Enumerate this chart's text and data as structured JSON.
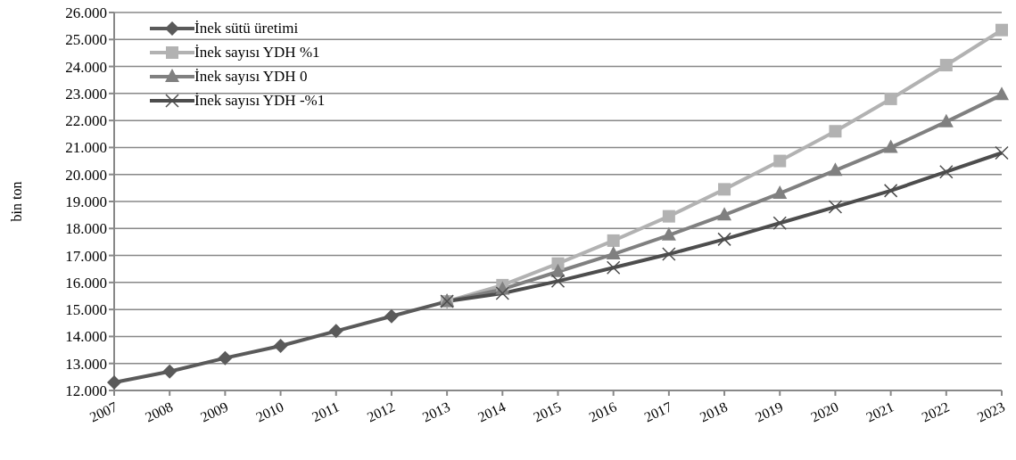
{
  "chart_data": {
    "type": "line",
    "ylabel": "bin ton",
    "categories": [
      "2007",
      "2008",
      "2009",
      "2010",
      "2011",
      "2012",
      "2013",
      "2014",
      "2015",
      "2016",
      "2017",
      "2018",
      "2019",
      "2020",
      "2021",
      "2022",
      "2023"
    ],
    "series": [
      {
        "name": "İnek sütü üretimi",
        "color": "#5a5a5a",
        "marker": "diamond",
        "values": [
          12300,
          12700,
          13200,
          13650,
          14200,
          14750,
          15300,
          null,
          null,
          null,
          null,
          null,
          null,
          null,
          null,
          null,
          null
        ]
      },
      {
        "name": "İnek sayısı YDH %1",
        "color": "#b2b2b2",
        "marker": "square",
        "values": [
          null,
          null,
          null,
          null,
          null,
          null,
          15300,
          15900,
          16700,
          17550,
          18450,
          19450,
          20500,
          21600,
          22800,
          24050,
          25350
        ]
      },
      {
        "name": "İnek sayısı YDH 0",
        "color": "#808080",
        "marker": "triangle",
        "values": [
          null,
          null,
          null,
          null,
          null,
          null,
          15300,
          15750,
          16400,
          17050,
          17750,
          18500,
          19300,
          20150,
          21000,
          21950,
          22950
        ]
      },
      {
        "name": "İnek sayısı YDH -%1",
        "color": "#4d4d4d",
        "marker": "cross",
        "values": [
          null,
          null,
          null,
          null,
          null,
          null,
          15300,
          15600,
          16050,
          16550,
          17050,
          17600,
          18200,
          18800,
          19400,
          20100,
          20800
        ]
      }
    ],
    "ylim": [
      12000,
      26000
    ],
    "yticks": [
      {
        "value": 12000,
        "label": "12.000"
      },
      {
        "value": 13000,
        "label": "13.000"
      },
      {
        "value": 14000,
        "label": "14.000"
      },
      {
        "value": 15000,
        "label": "15.000"
      },
      {
        "value": 16000,
        "label": "16.000"
      },
      {
        "value": 17000,
        "label": "17.000"
      },
      {
        "value": 18000,
        "label": "18.000"
      },
      {
        "value": 19000,
        "label": "19.000"
      },
      {
        "value": 20000,
        "label": "20.000"
      },
      {
        "value": 21000,
        "label": "21.000"
      },
      {
        "value": 22000,
        "label": "22.000"
      },
      {
        "value": 23000,
        "label": "23.000"
      },
      {
        "value": 24000,
        "label": "24.000"
      },
      {
        "value": 25000,
        "label": "25.000"
      },
      {
        "value": 26000,
        "label": "26.000"
      }
    ],
    "grid": "y",
    "legend": "top left",
    "line_style": "solid"
  }
}
